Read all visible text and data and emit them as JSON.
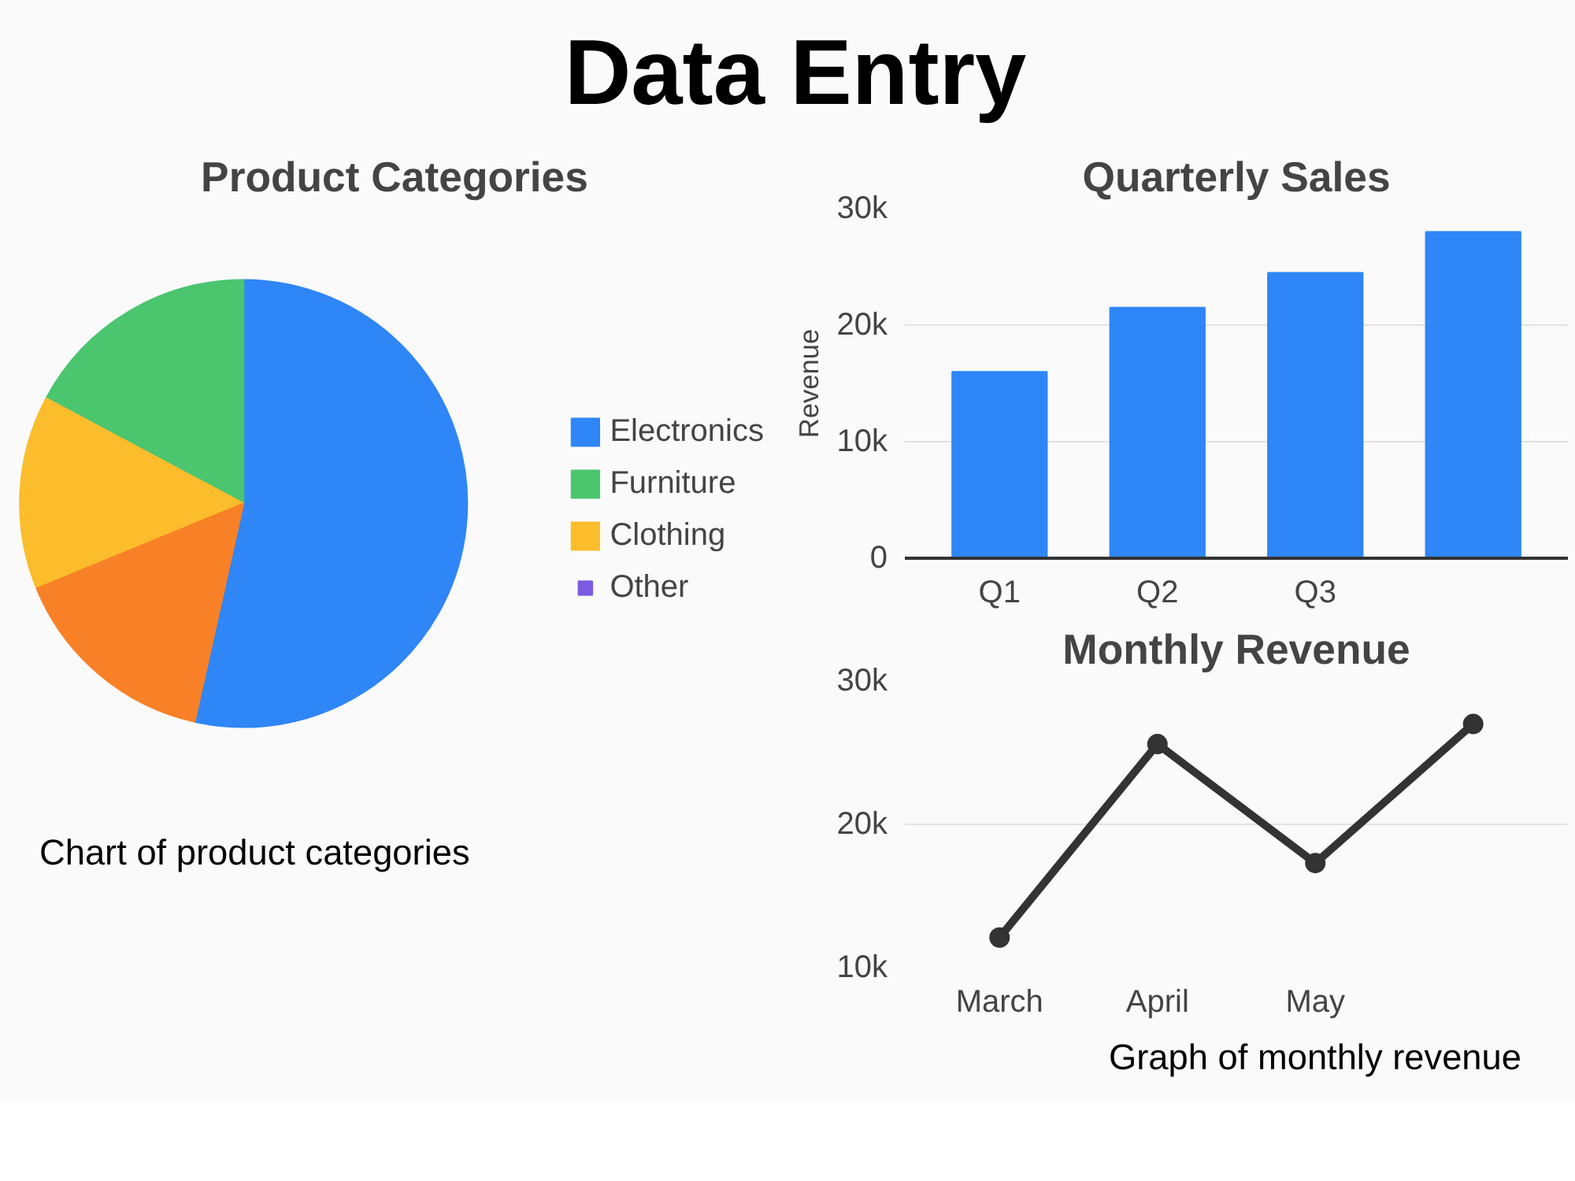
{
  "chart_data": [
    {
      "type": "pie",
      "title": "Product Categories",
      "annotations": [
        "Data Entry",
        "Chart of product categories"
      ],
      "categories": [
        "Electronics",
        "Furniture",
        "Clothing",
        "Other",
        null
      ],
      "values": [
        53.5,
        17.2,
        14.0,
        0,
        15.3
      ],
      "colors": [
        "#2f86f6",
        "#4cc56f",
        "#fbbd2c",
        "#7b5ce0",
        "#f88127"
      ],
      "legend": "right"
    },
    {
      "type": "bar",
      "title": "Quarterly Sales",
      "ylabel": "Revenue",
      "categories": [
        "Q1",
        "Q2",
        "Q3",
        null
      ],
      "values": [
        16000,
        21500,
        24500,
        28000
      ],
      "color": "#2f86f6",
      "ylim": [
        0,
        30000
      ],
      "yticks": [
        {
          "value": 0,
          "label": "0"
        },
        {
          "value": 10000,
          "label": "10k"
        },
        {
          "value": 20000,
          "label": "20k"
        },
        {
          "value": 30000,
          "label": "30k"
        }
      ],
      "grid": "y"
    },
    {
      "type": "line",
      "title": "Monthly Revenue",
      "annotations": [
        "Graph of monthly revenue"
      ],
      "categories": [
        "March",
        "April",
        "May",
        null
      ],
      "values": [
        12100,
        25600,
        17300,
        27000
      ],
      "color": "#333333",
      "ylim": [
        10000,
        30000
      ],
      "yticks": [
        {
          "value": 10000,
          "label": "10k"
        },
        {
          "value": 20000,
          "label": "20k"
        },
        {
          "value": 30000,
          "label": "30k"
        }
      ],
      "grid": "y",
      "marker": "circle"
    }
  ]
}
